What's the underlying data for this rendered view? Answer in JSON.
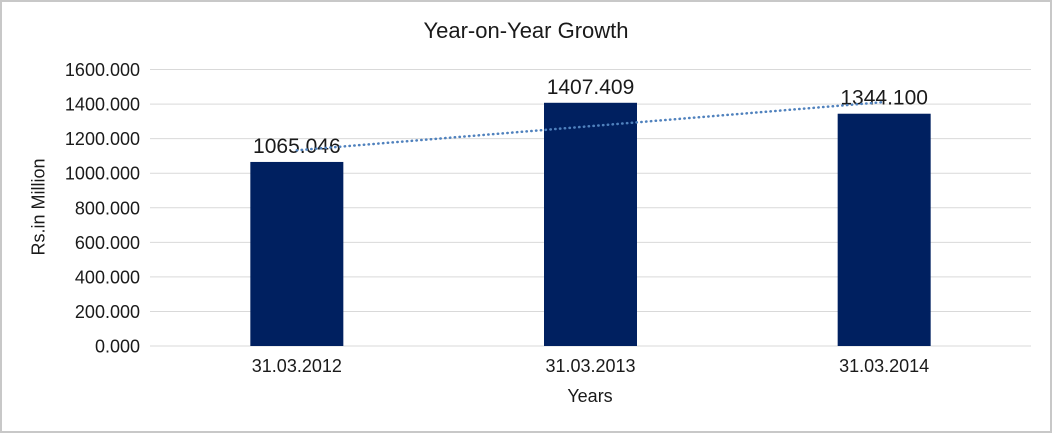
{
  "chart_data": {
    "type": "bar",
    "title": "Year-on-Year Growth",
    "xlabel": "Years",
    "ylabel": "Rs.in Million",
    "categories": [
      "31.03.2012",
      "31.03.2013",
      "31.03.2014"
    ],
    "values": [
      1065.046,
      1407.409,
      1344.1
    ],
    "data_labels": [
      "1065.046",
      "1407.409",
      "1344.100"
    ],
    "ylim": [
      0,
      1600
    ],
    "ytick_step": 200,
    "ytick_labels": [
      "0.000",
      "200.000",
      "400.000",
      "600.000",
      "800.000",
      "1000.000",
      "1200.000",
      "1400.000",
      "1600.000"
    ],
    "grid": true,
    "legend": "none",
    "bar_color": "#002060",
    "gridline_color": "#d9d9d9",
    "text_color": "#1a1a1a",
    "trendline": {
      "type": "linear",
      "style": "dotted",
      "color": "#4f81bd"
    }
  }
}
